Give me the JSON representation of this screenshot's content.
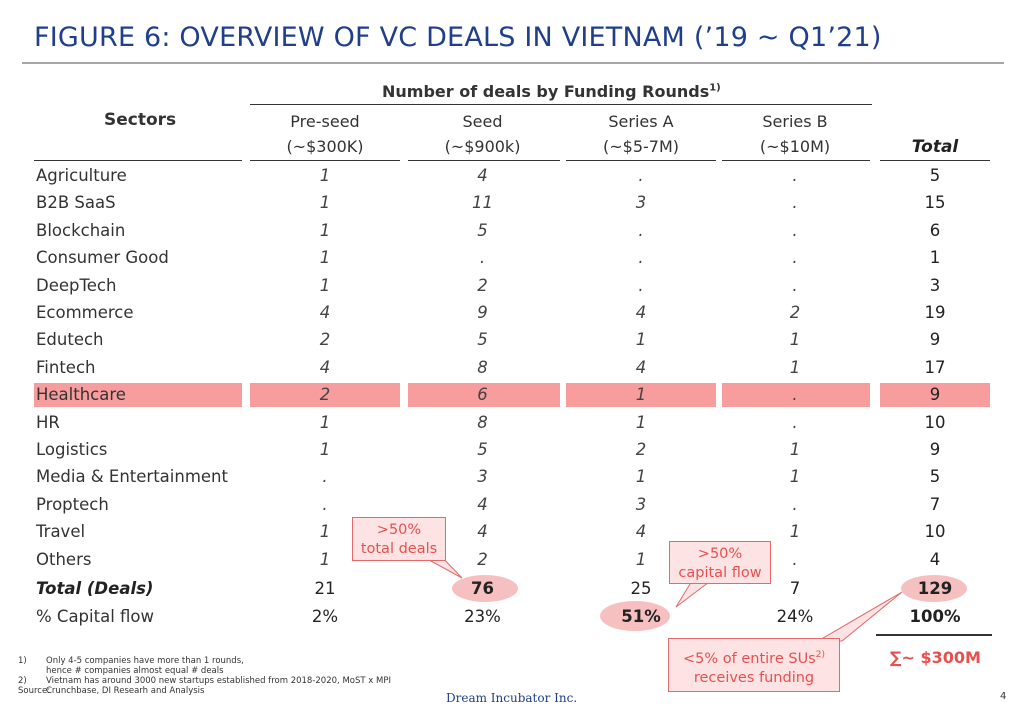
{
  "title": "FIGURE 6: OVERVIEW OF VC DEALS IN VIETNAM (’19 ~ Q1’21)",
  "header": {
    "group": "Number of deals by Funding Rounds",
    "group_sup": "1)",
    "sectors": "Sectors",
    "total": "Total",
    "columns": [
      {
        "name": "Pre-seed",
        "range": "(~$300K)"
      },
      {
        "name": "Seed",
        "range": "(~$900k)"
      },
      {
        "name": "Series A",
        "range": "(~$5-7M)"
      },
      {
        "name": "Series B",
        "range": "(~$10M)"
      }
    ]
  },
  "rows": [
    {
      "sector": "Agriculture",
      "v": [
        "1",
        "4",
        ".",
        "."
      ],
      "total": "5"
    },
    {
      "sector": "B2B SaaS",
      "v": [
        "1",
        "11",
        "3",
        "."
      ],
      "total": "15"
    },
    {
      "sector": "Blockchain",
      "v": [
        "1",
        "5",
        ".",
        "."
      ],
      "total": "6"
    },
    {
      "sector": "Consumer Good",
      "v": [
        "1",
        ".",
        ".",
        "."
      ],
      "total": "1"
    },
    {
      "sector": "DeepTech",
      "v": [
        "1",
        "2",
        ".",
        "."
      ],
      "total": "3"
    },
    {
      "sector": "Ecommerce",
      "v": [
        "4",
        "9",
        "4",
        "2"
      ],
      "total": "19"
    },
    {
      "sector": "Edutech",
      "v": [
        "2",
        "5",
        "1",
        "1"
      ],
      "total": "9"
    },
    {
      "sector": "Fintech",
      "v": [
        "4",
        "8",
        "4",
        "1"
      ],
      "total": "17"
    },
    {
      "sector": "Healthcare",
      "v": [
        "2",
        "6",
        "1",
        "."
      ],
      "total": "9",
      "highlight": true
    },
    {
      "sector": "HR",
      "v": [
        "1",
        "8",
        "1",
        "."
      ],
      "total": "10"
    },
    {
      "sector": "Logistics",
      "v": [
        "1",
        "5",
        "2",
        "1"
      ],
      "total": "9"
    },
    {
      "sector": "Media & Entertainment",
      "v": [
        ".",
        "3",
        "1",
        "1"
      ],
      "total": "5"
    },
    {
      "sector": "Proptech",
      "v": [
        ".",
        "4",
        "3",
        "."
      ],
      "total": "7"
    },
    {
      "sector": "Travel",
      "v": [
        "1",
        "4",
        "4",
        "1"
      ],
      "total": "10"
    },
    {
      "sector": "Others",
      "v": [
        "1",
        "2",
        "1",
        "."
      ],
      "total": "4"
    }
  ],
  "total_deals": {
    "label": "Total (Deals)",
    "v": [
      "21",
      "76",
      "25",
      "7"
    ],
    "total": "129"
  },
  "capital_flow": {
    "label": "% Capital flow",
    "v": [
      "2%",
      "23%",
      "51%",
      "24%"
    ],
    "total": "100%"
  },
  "callouts": {
    "seed": ">50%\ntotal deals",
    "series_a": ">50%\ncapital flow",
    "sus": "<5% of entire SUs",
    "sus_sup": "2)",
    "sus_line2": "receives funding"
  },
  "sum_total": "∑~ $300M",
  "footnotes": [
    {
      "key": "1)",
      "text": "Only 4-5 companies have more than 1 rounds,"
    },
    {
      "key": "",
      "text": "hence # companies almost equal # deals"
    },
    {
      "key": "2)",
      "text": "Vietnam has around 3000 new startups established from 2018-2020, MoST x MPI"
    },
    {
      "key": "Source:",
      "text": "Crunchbase, DI Researh and Analysis"
    }
  ],
  "company": "Dream Incubator Inc.",
  "page_number": "4",
  "colors": {
    "title": "#1f3e8c",
    "highlight": "#f79d9d",
    "accent": "#e8504f",
    "ellipse": "#f6c0c0"
  }
}
